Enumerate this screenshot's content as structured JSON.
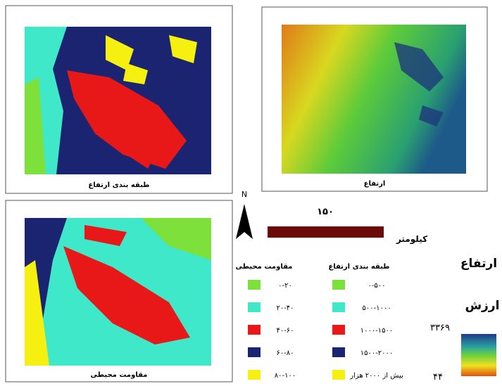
{
  "panels": [
    {
      "caption": "طبقه بندی ارتفاع"
    },
    {
      "caption": "ارتفاع"
    },
    {
      "caption": "مقاومت محیطی"
    }
  ],
  "north": "N",
  "scale": {
    "distance": "۱۵۰",
    "unit": "کیلومتر"
  },
  "legends": [
    {
      "title": "طبقه بندی ارتفاع",
      "items": [
        "۰-۵۰۰",
        "۵۰۰-۱۰۰۰",
        "۱۰۰۰-۱۵۰۰",
        "۱۵۰۰-۲۰۰۰",
        "بیش از ۲۰۰۰ هزار"
      ]
    },
    {
      "title": "مقاومت محیطی",
      "items": [
        "۰-۲۰",
        "۲۰-۴۰",
        "۴۰-۶۰",
        "۶۰-۸۰",
        "۸۰-۱۰۰"
      ]
    }
  ],
  "elevation_legend": {
    "title": "ارتفاع",
    "subtitle": "ارزش",
    "max": "۳۳۶۹",
    "min": "۴۴"
  }
}
